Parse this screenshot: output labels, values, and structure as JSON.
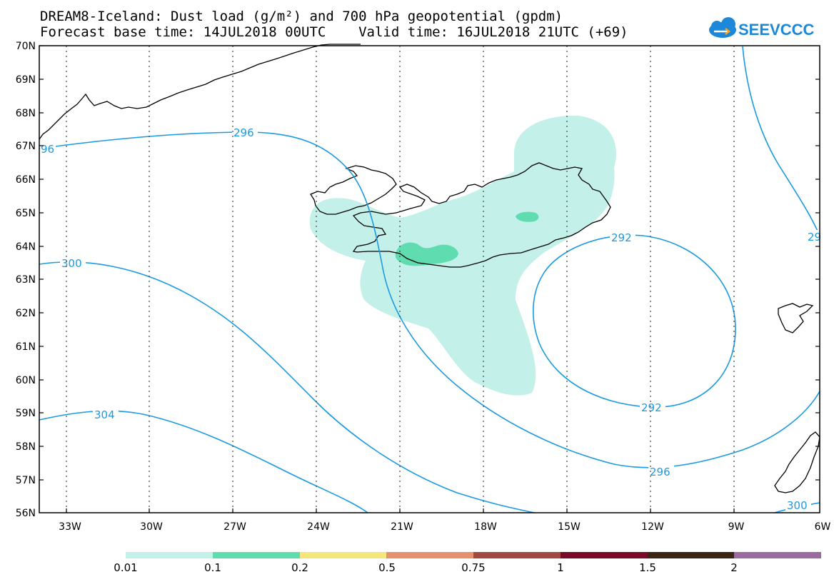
{
  "title": {
    "line1": "DREAM8-Iceland: Dust load (g/m²) and 700 hPa geopotential (gpdm)",
    "line2": "Forecast base time: 14JUL2018 00UTC    Valid time: 16JUL2018 21UTC (+69)"
  },
  "logo": {
    "text": "SEEVCCC",
    "icon": "cloud-icon",
    "color": "#1e88d8"
  },
  "axes": {
    "lat_labels": [
      "70N",
      "69N",
      "68N",
      "67N",
      "66N",
      "65N",
      "64N",
      "63N",
      "62N",
      "61N",
      "60N",
      "59N",
      "58N",
      "57N",
      "56N"
    ],
    "lon_labels": [
      "33W",
      "30W",
      "27W",
      "24W",
      "21W",
      "18W",
      "15W",
      "12W",
      "9W",
      "6W"
    ]
  },
  "contours": {
    "color": "#1a9ae0",
    "labels": [
      "96",
      "296",
      "300",
      "304",
      "292",
      "292",
      "296",
      "29",
      "300"
    ]
  },
  "colorbar": {
    "colors": [
      "#c4f0ea",
      "#5fdcb0",
      "#f5e67a",
      "#e6906e",
      "#a04a42",
      "#7a0a2a",
      "#3a2414",
      "#9a6aa0"
    ],
    "labels": [
      "0.01",
      "0.1",
      "0.2",
      "0.5",
      "0.75",
      "1",
      "1.5",
      "2"
    ]
  }
}
